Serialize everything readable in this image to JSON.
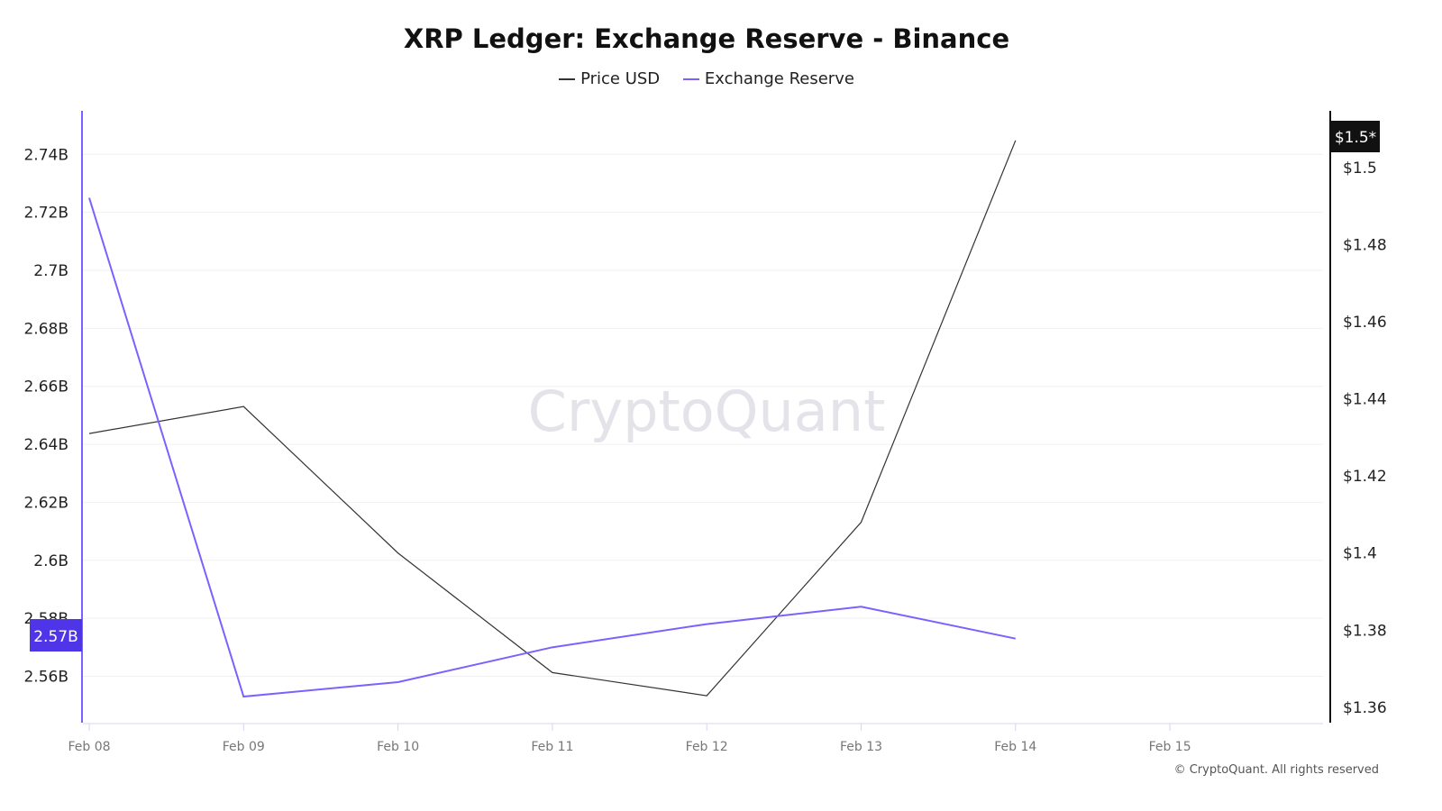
{
  "chart_data": {
    "type": "line",
    "title": "XRP Ledger: Exchange Reserve - Binance",
    "watermark": "CryptoQuant",
    "copyright": "© CryptoQuant. All rights reserved",
    "x": [
      "Feb 08",
      "Feb 09",
      "Feb 10",
      "Feb 11",
      "Feb 12",
      "Feb 13",
      "Feb 14"
    ],
    "x_ticks": [
      "Feb 08",
      "Feb 09",
      "Feb 10",
      "Feb 11",
      "Feb 12",
      "Feb 13",
      "Feb 14",
      "Feb 15"
    ],
    "grid": "horizontal",
    "legend_placement": "top-center",
    "left_axis": {
      "ticks": [
        "2.56B",
        "2.58B",
        "2.6B",
        "2.62B",
        "2.64B",
        "2.66B",
        "2.68B",
        "2.7B",
        "2.72B",
        "2.74B"
      ],
      "tick_values": [
        2.56,
        2.58,
        2.6,
        2.62,
        2.64,
        2.66,
        2.68,
        2.7,
        2.72,
        2.74
      ],
      "range": [
        2.544,
        2.755
      ],
      "unit": "B",
      "current_label": "2.57B",
      "color": "#7b61ff"
    },
    "right_axis": {
      "ticks": [
        "$1.36",
        "$1.38",
        "$1.4",
        "$1.42",
        "$1.44",
        "$1.46",
        "$1.48",
        "$1.5"
      ],
      "tick_values": [
        1.36,
        1.38,
        1.4,
        1.42,
        1.44,
        1.46,
        1.48,
        1.5
      ],
      "range": [
        1.356,
        1.5147
      ],
      "current_label": "$1.5*",
      "color": "#111111"
    },
    "series": [
      {
        "name": "Price USD",
        "axis": "right",
        "color": "#333333",
        "values": [
          1.431,
          1.438,
          1.4,
          1.369,
          1.363,
          1.408,
          1.507
        ]
      },
      {
        "name": "Exchange Reserve",
        "axis": "left",
        "color": "#7b61ff",
        "values": [
          2.725,
          2.553,
          2.558,
          2.57,
          2.578,
          2.584,
          2.573
        ]
      }
    ]
  }
}
